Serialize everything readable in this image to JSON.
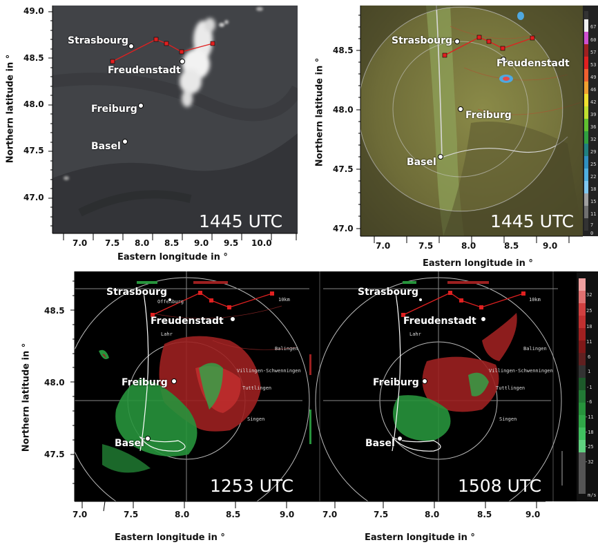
{
  "panels": {
    "sat": {
      "time": "1445 UTC",
      "xticks": [
        "7.0",
        "7.5",
        "8.0",
        "8.5",
        "9.0",
        "9.5",
        "10.0"
      ],
      "yticks": [
        "49.0",
        "48.5",
        "48.0",
        "47.5",
        "47.0"
      ],
      "xlabel": "Eastern longitude in °",
      "ylabel": "Northern latitude in °"
    },
    "reflect": {
      "time": "1445 UTC",
      "xticks": [
        "7.0",
        "7.5",
        "8.0",
        "8.5",
        "9.0"
      ],
      "yticks": [
        "48.5",
        "48.0",
        "47.5",
        "47.0"
      ],
      "xlabel": "Eastern longitude in °",
      "ylabel": "Northern latitude in °",
      "colorbar_labels": [
        "67",
        "60",
        "57",
        "53",
        "49",
        "46",
        "42",
        "39",
        "36",
        "32",
        "29",
        "25",
        "22",
        "18",
        "15",
        "11",
        "7",
        "0"
      ]
    },
    "vel1": {
      "time": "1253 UTC",
      "xticks": [
        "7.0",
        "7.5",
        "8.0",
        "8.5",
        "9.0"
      ],
      "yticks": [
        "48.5",
        "48.0",
        "47.5"
      ],
      "xlabel": "Eastern longitude in °",
      "ylabel": "Northern latitude in °"
    },
    "vel2": {
      "time": "1508 UTC",
      "xticks": [
        "7.0",
        "7.5",
        "8.0",
        "8.5",
        "9.0"
      ],
      "xlabel": "Eastern longitude in °",
      "colorbar_labels": [
        "32",
        "25",
        "18",
        "11",
        "6",
        "1",
        "-1",
        "-6",
        "-11",
        "-18",
        "-25",
        "-32"
      ],
      "colorbar_unit": "m/s"
    }
  },
  "cities": {
    "strasbourg": "Strasbourg",
    "freudenstadt": "Freudenstadt",
    "freiburg": "Freiburg",
    "basel": "Basel"
  },
  "map_labels": {
    "offenburg": "Offenburg",
    "lahr": "Lahr",
    "villingen": "Villingen-Schwenningen",
    "tuttlingen": "Tuttlingen",
    "balingen": "Balingen",
    "singen": "Singen",
    "scale": "10km"
  },
  "colors": {
    "track": "#e02020",
    "positive_velocity": "#b02424",
    "negative_velocity": "#2fa84a",
    "satellite_bg": "#3d3f42",
    "cloud": "#f2f2f2"
  }
}
